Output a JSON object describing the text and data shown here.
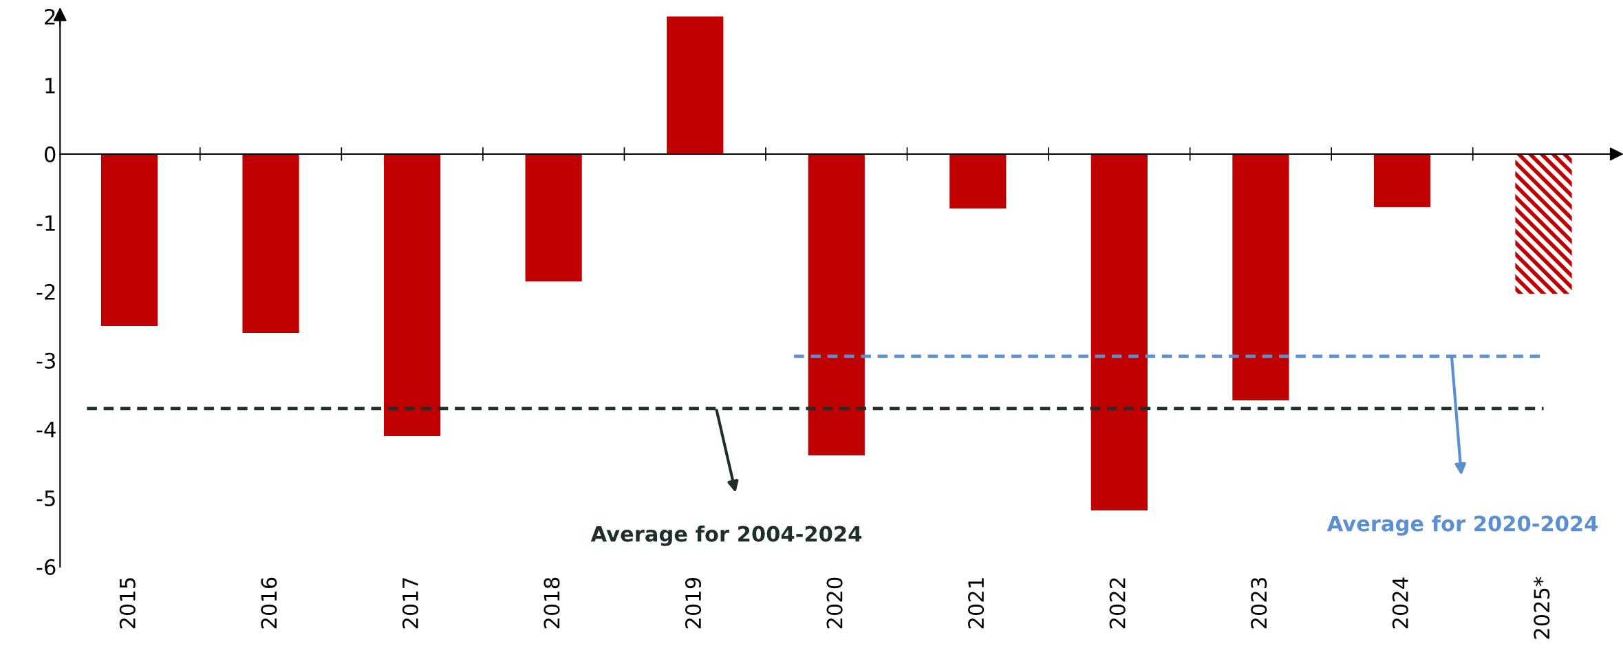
{
  "chart_data": {
    "type": "bar",
    "stacked": true,
    "categories": [
      "2015",
      "2016",
      "2017",
      "2018",
      "2019",
      "2020",
      "2021",
      "2022",
      "2023",
      "2024",
      "2025*"
    ],
    "series": [
      {
        "color": "#c00000",
        "values": [
          -2.5,
          -2.6,
          -4.1,
          -1.85,
          2.0,
          -4.38,
          -0.79,
          -5.18,
          -3.58,
          -0.77,
          null
        ]
      },
      {
        "color": "#c00000",
        "values": [
          null,
          null,
          null,
          null,
          null,
          null,
          null,
          null,
          null,
          null,
          -2.03
        ]
      }
    ],
    "ylim": [
      -6,
      2
    ],
    "yticks": [
      -6,
      -5,
      -4,
      -3,
      -2,
      -1,
      0,
      1,
      2
    ],
    "ref_lines": [
      {
        "axis": "y",
        "value": -3.7,
        "label": "Average for 2004-2024",
        "color": "#1f2d2d",
        "line_style": "dashed"
      },
      {
        "axis": "y",
        "value": -2.94,
        "label": "Average for 2020-2024",
        "color": "#5b8fd0",
        "line_style": "dashed"
      }
    ]
  }
}
